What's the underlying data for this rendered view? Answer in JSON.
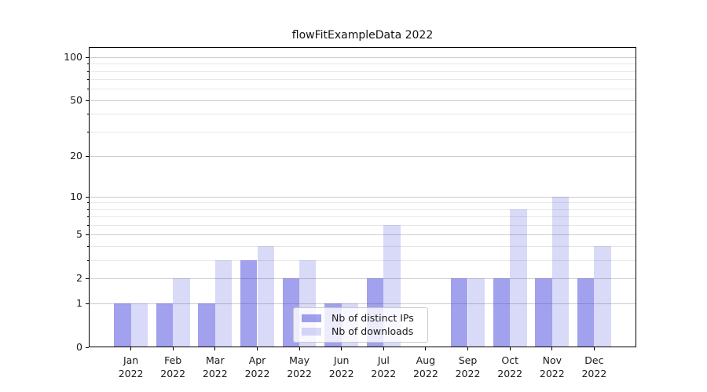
{
  "chart_data": {
    "type": "bar",
    "title": "flowFitExampleData 2022",
    "categories": [
      "Jan",
      "Feb",
      "Mar",
      "Apr",
      "May",
      "Jun",
      "Jul",
      "Aug",
      "Sep",
      "Oct",
      "Nov",
      "Dec"
    ],
    "x_tick_year": "2022",
    "series": [
      {
        "name": "Nb of distinct IPs",
        "color_hex": "#a1a1ed",
        "color_rgba": "rgba(47,47,215,0.45)",
        "values": [
          1,
          1,
          1,
          3,
          2,
          1,
          2,
          0,
          2,
          2,
          2,
          2
        ]
      },
      {
        "name": "Nb of downloads",
        "color_hex": "#d9d9f8",
        "color_rgba": "rgba(47,47,215,0.18)",
        "values": [
          1,
          2,
          3,
          4,
          3,
          1,
          6,
          0,
          2,
          8,
          10,
          4
        ]
      }
    ],
    "y_axis": {
      "scale": "log1p",
      "min": 0,
      "max": 117.5,
      "major_ticks": [
        100,
        50,
        20,
        10,
        5,
        2,
        1,
        0
      ],
      "minor_ticks": [
        90,
        80,
        70,
        60,
        40,
        30,
        9,
        8,
        7,
        6,
        4,
        3
      ]
    },
    "grid": {
      "horizontal": true,
      "vertical": false,
      "major_color": "#cccccc",
      "minor_color": "#e7e7e7"
    },
    "legend_position": "lower center",
    "axis_color": "#000000",
    "text_color": "#1a1a1a",
    "background": "#ffffff"
  }
}
